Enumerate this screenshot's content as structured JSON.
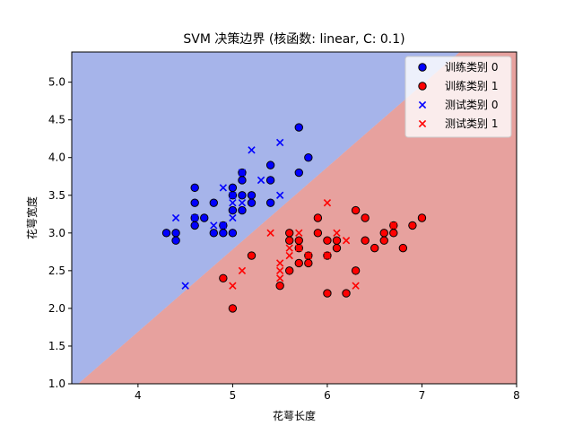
{
  "chart_data": {
    "type": "scatter",
    "title": "SVM 决策边界 (核函数: linear, C: 0.1)",
    "xlabel": "花萼长度",
    "ylabel": "花萼宽度",
    "xlim": [
      3.3,
      8.0
    ],
    "ylim": [
      1.0,
      5.4
    ],
    "xticks": [
      4,
      5,
      6,
      7,
      8
    ],
    "yticks": [
      1.0,
      1.5,
      2.0,
      2.5,
      3.0,
      3.5,
      4.0,
      4.5,
      5.0
    ],
    "grid": false,
    "legend_position": "top-right",
    "decision_boundary": {
      "points": [
        [
          3.37,
          1.0
        ],
        [
          7.4,
          5.4
        ]
      ]
    },
    "regions": [
      {
        "label": "类别 0",
        "color": "#a6b4ea"
      },
      {
        "label": "类别 1",
        "color": "#e7a19e"
      }
    ],
    "series": [
      {
        "name": "训练类别 0",
        "marker": "circle",
        "color": "#0000ff",
        "points": [
          [
            4.3,
            3.0
          ],
          [
            4.4,
            2.9
          ],
          [
            4.4,
            3.0
          ],
          [
            4.6,
            3.1
          ],
          [
            4.6,
            3.4
          ],
          [
            4.6,
            3.6
          ],
          [
            4.7,
            3.2
          ],
          [
            4.8,
            3.0
          ],
          [
            4.8,
            3.4
          ],
          [
            4.9,
            3.0
          ],
          [
            4.9,
            3.1
          ],
          [
            5.0,
            3.0
          ],
          [
            5.0,
            3.3
          ],
          [
            5.0,
            3.5
          ],
          [
            5.0,
            3.6
          ],
          [
            5.1,
            3.3
          ],
          [
            5.1,
            3.5
          ],
          [
            5.1,
            3.7
          ],
          [
            5.1,
            3.8
          ],
          [
            5.2,
            3.4
          ],
          [
            5.2,
            3.5
          ],
          [
            5.4,
            3.4
          ],
          [
            5.4,
            3.7
          ],
          [
            5.4,
            3.9
          ],
          [
            5.7,
            3.8
          ],
          [
            5.7,
            4.4
          ],
          [
            5.8,
            4.0
          ],
          [
            4.6,
            3.2
          ]
        ]
      },
      {
        "name": "训练类别 1",
        "marker": "circle",
        "color": "#ff0000",
        "points": [
          [
            4.9,
            2.4
          ],
          [
            5.0,
            2.0
          ],
          [
            5.2,
            2.7
          ],
          [
            5.5,
            2.3
          ],
          [
            5.6,
            2.5
          ],
          [
            5.6,
            2.9
          ],
          [
            5.6,
            3.0
          ],
          [
            5.7,
            2.6
          ],
          [
            5.7,
            2.8
          ],
          [
            5.7,
            2.9
          ],
          [
            5.8,
            2.7
          ],
          [
            5.9,
            3.0
          ],
          [
            5.9,
            3.2
          ],
          [
            6.0,
            2.2
          ],
          [
            6.0,
            2.9
          ],
          [
            6.1,
            2.8
          ],
          [
            6.1,
            2.9
          ],
          [
            6.2,
            2.2
          ],
          [
            6.3,
            2.5
          ],
          [
            6.3,
            3.3
          ],
          [
            6.4,
            2.9
          ],
          [
            6.4,
            3.2
          ],
          [
            6.5,
            2.8
          ],
          [
            6.6,
            2.9
          ],
          [
            6.6,
            3.0
          ],
          [
            6.7,
            3.0
          ],
          [
            6.7,
            3.1
          ],
          [
            6.8,
            2.8
          ],
          [
            6.9,
            3.1
          ],
          [
            7.0,
            3.2
          ],
          [
            5.8,
            2.6
          ],
          [
            6.0,
            2.7
          ]
        ]
      },
      {
        "name": "测试类别 0",
        "marker": "x",
        "color": "#0000ff",
        "points": [
          [
            4.4,
            3.2
          ],
          [
            4.5,
            2.3
          ],
          [
            4.6,
            3.2
          ],
          [
            4.8,
            3.1
          ],
          [
            4.9,
            3.1
          ],
          [
            4.9,
            3.6
          ],
          [
            5.0,
            3.2
          ],
          [
            5.0,
            3.4
          ],
          [
            5.0,
            3.5
          ],
          [
            5.1,
            3.4
          ],
          [
            5.1,
            3.8
          ],
          [
            5.2,
            4.1
          ],
          [
            5.3,
            3.7
          ],
          [
            5.5,
            3.5
          ],
          [
            5.5,
            4.2
          ]
        ]
      },
      {
        "name": "测试类别 1",
        "marker": "x",
        "color": "#ff0000",
        "points": [
          [
            5.0,
            2.3
          ],
          [
            5.1,
            2.5
          ],
          [
            5.4,
            3.0
          ],
          [
            5.5,
            2.4
          ],
          [
            5.5,
            2.5
          ],
          [
            5.5,
            2.6
          ],
          [
            5.6,
            2.7
          ],
          [
            5.6,
            2.8
          ],
          [
            5.7,
            2.8
          ],
          [
            5.7,
            3.0
          ],
          [
            5.8,
            2.7
          ],
          [
            6.0,
            2.7
          ],
          [
            6.0,
            3.4
          ],
          [
            6.1,
            3.0
          ],
          [
            6.2,
            2.9
          ],
          [
            6.3,
            2.3
          ],
          [
            6.7,
            3.1
          ]
        ]
      }
    ]
  }
}
